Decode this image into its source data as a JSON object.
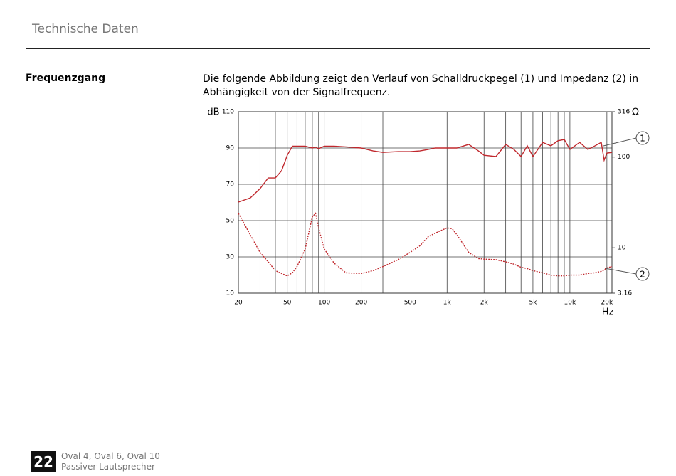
{
  "header": {
    "title": "Technische Daten"
  },
  "section": {
    "heading": "Frequenzgang",
    "text_lines": [
      "Die folgende Abbildung zeigt den Verlauf von Schalldruckpegel (1) und Impedanz (2) in",
      "Abhängigkeit von der Signalfrequenz."
    ]
  },
  "chart": {
    "type": "line",
    "xlabel": "Hz",
    "ylabel": "dB",
    "y2label": "Ω",
    "xscale": "log",
    "y2scale": "log",
    "grid": true,
    "xlim": [
      20,
      22000
    ],
    "ylim": [
      10,
      110
    ],
    "y2lim": [
      3.16,
      316
    ],
    "xticks": [
      20,
      50,
      100,
      200,
      500,
      {
        "value": 1000,
        "label": "1k"
      },
      {
        "value": 2000,
        "label": "2k"
      },
      {
        "value": 5000,
        "label": "5k"
      },
      {
        "value": 10000,
        "label": "10k"
      },
      {
        "value": 20000,
        "label": "20k"
      }
    ],
    "xgrid": [
      20,
      30,
      40,
      50,
      60,
      70,
      80,
      90,
      100,
      200,
      300,
      1000,
      2000,
      3000,
      4000,
      5000,
      6000,
      7000,
      8000,
      9000,
      10000,
      20000
    ],
    "yticks": [
      10,
      30,
      50,
      70,
      90,
      110
    ],
    "y2ticks": [
      3.16,
      10,
      100,
      316
    ],
    "x": [
      20,
      25,
      30,
      35,
      40,
      45,
      50,
      55,
      60,
      70,
      80,
      85,
      90,
      100,
      120,
      150,
      200,
      250,
      300,
      400,
      500,
      600,
      700,
      800,
      1000,
      1100,
      1200,
      1500,
      1800,
      2000,
      2500,
      3000,
      3500,
      4000,
      4500,
      5000,
      6000,
      7000,
      8000,
      9000,
      10000,
      12000,
      14000,
      16000,
      18000,
      19000,
      20000,
      22000
    ],
    "series": [
      {
        "name": "1",
        "color": "#c0282d",
        "dash": false,
        "values": [
          60.2,
          62.5,
          67.6,
          73.5,
          73.5,
          77.5,
          86,
          91,
          91,
          91,
          90,
          90.5,
          89.6,
          91,
          91,
          90.6,
          90,
          88.4,
          87.6,
          88,
          88,
          88.4,
          89.2,
          90,
          90,
          90,
          90,
          92,
          88.4,
          86,
          85.3,
          92,
          89.2,
          85.3,
          91.2,
          85.3,
          93.1,
          91.2,
          94,
          94.7,
          89.2,
          93.1,
          89.2,
          91.2,
          93.1,
          83.3,
          87.2,
          87.6
        ]
      },
      {
        "name": "2",
        "color": "#c0282d",
        "dash": true,
        "axis": "y2",
        "values": [
          24,
          13.9,
          8.9,
          7,
          5.6,
          5.2,
          4.9,
          5.3,
          6.2,
          9.7,
          21.9,
          24,
          16.6,
          9.7,
          6.8,
          5.3,
          5.2,
          5.6,
          6.2,
          7.4,
          8.9,
          10.5,
          13.2,
          14.5,
          16.6,
          16.2,
          14,
          8.9,
          7.6,
          7.5,
          7.4,
          7,
          6.6,
          6.1,
          5.9,
          5.6,
          5.3,
          5,
          4.9,
          4.9,
          5,
          5,
          5.2,
          5.3,
          5.5,
          5.7,
          6,
          6.2
        ]
      }
    ]
  },
  "footer": {
    "page": "22",
    "lines": [
      "Oval 4, Oval 6, Oval 10",
      "Passiver Lautsprecher"
    ]
  }
}
